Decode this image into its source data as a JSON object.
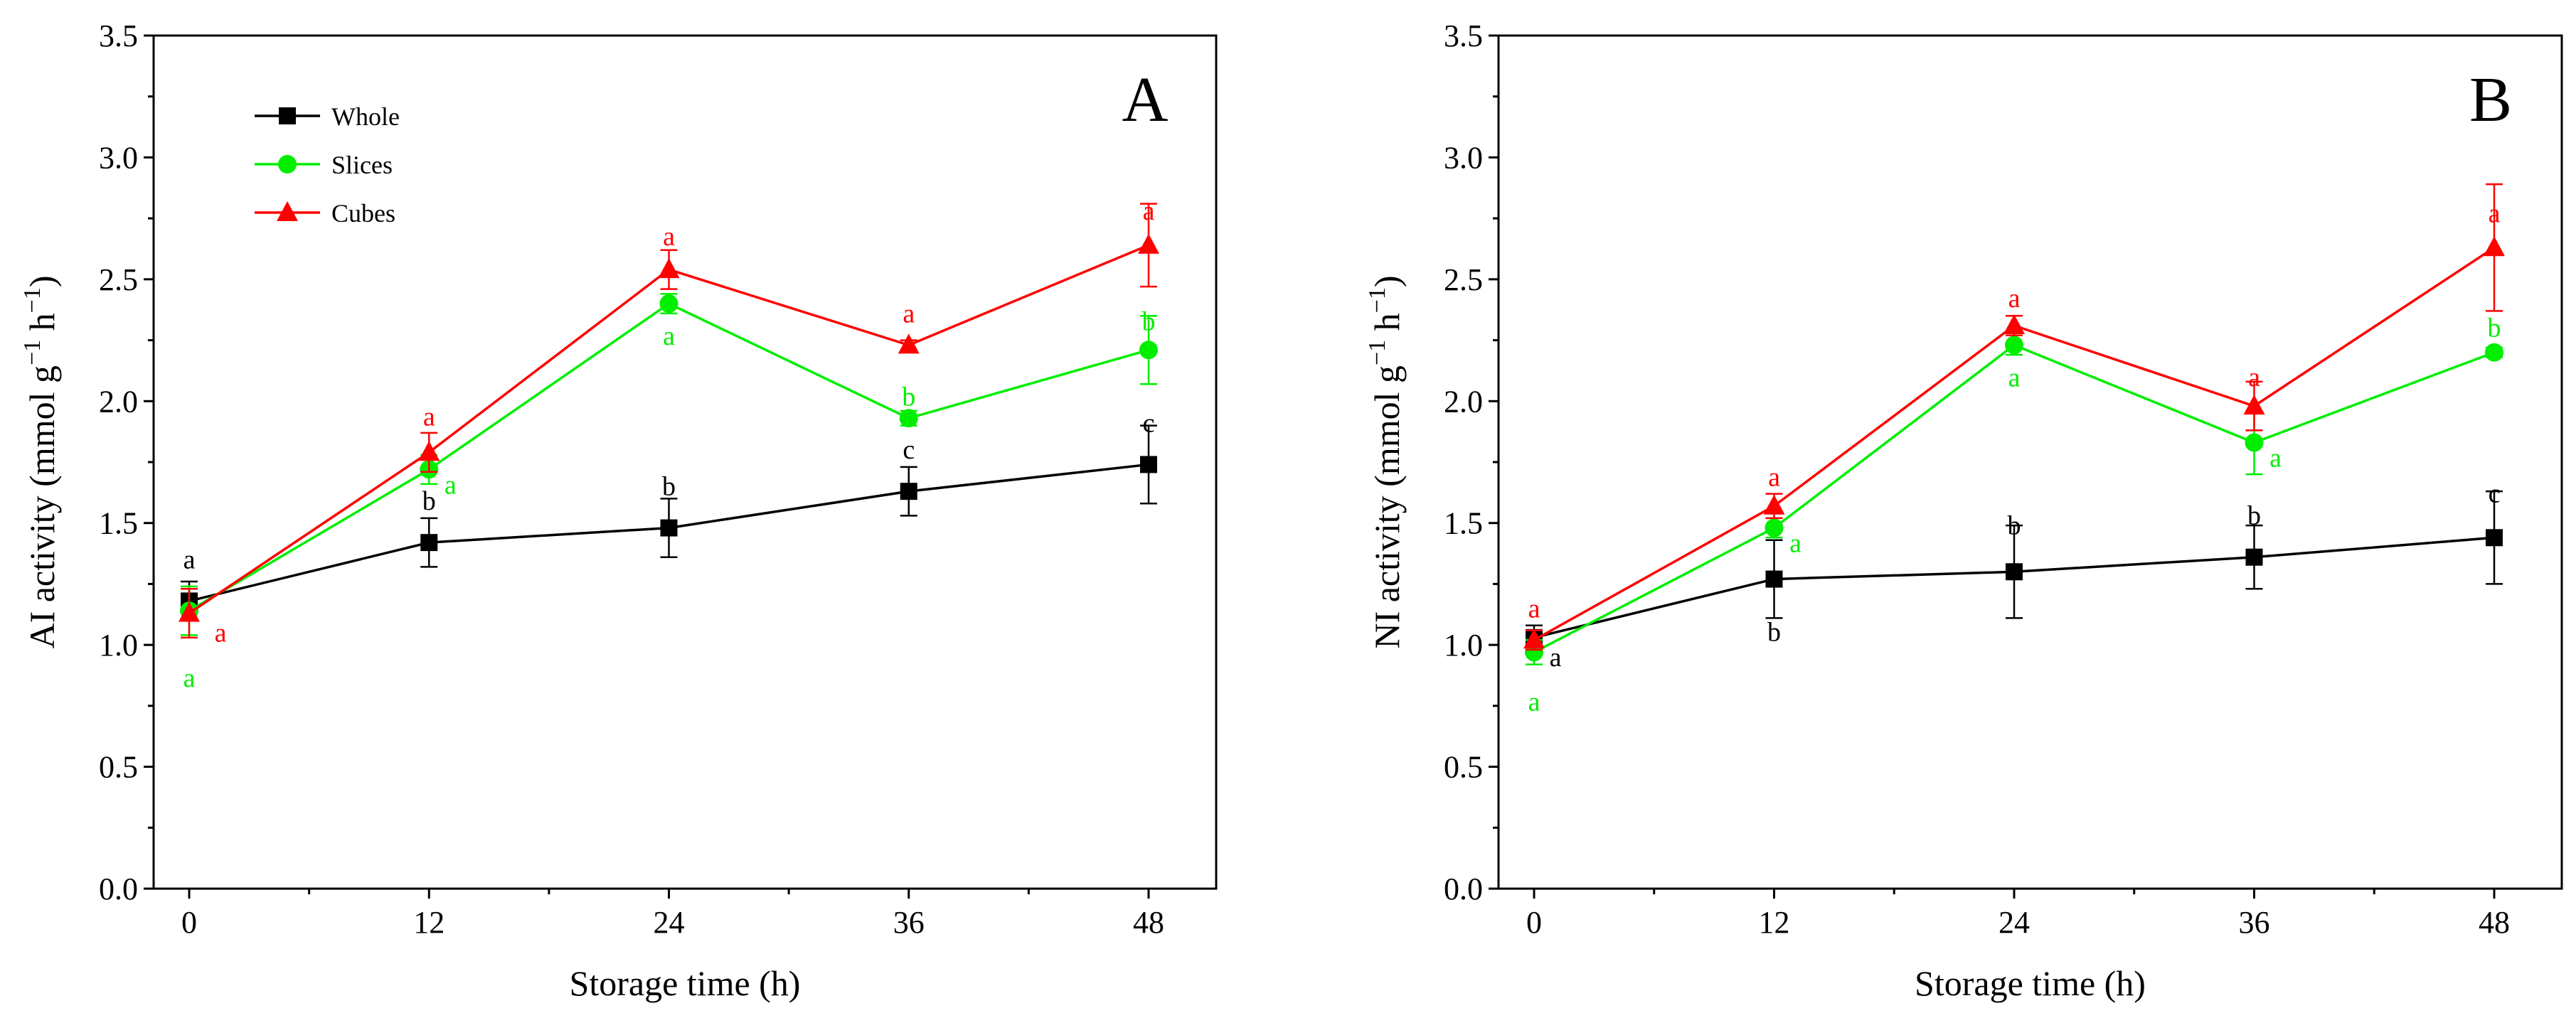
{
  "chart_data": [
    {
      "type": "line",
      "panel_label": "A",
      "xlabel": "Storage time (h)",
      "ylabel": "AI activity (mmol  g",
      "ylabel_unit_mid": " h",
      "ylabel_sup": "−1",
      "ylabel_close": ")",
      "x": [
        0,
        12,
        24,
        36,
        48
      ],
      "xticks": [
        "0",
        "12",
        "24",
        "36",
        "48"
      ],
      "ylim": [
        0,
        3.5
      ],
      "yticks": [
        "0.0",
        "0.5",
        "1.0",
        "1.5",
        "2.0",
        "2.5",
        "3.0",
        "3.5"
      ],
      "legend": {
        "placement": "top-left",
        "entries": [
          "Whole",
          "Slices",
          "Cubes"
        ]
      },
      "series": [
        {
          "name": "Whole",
          "color": "#000000",
          "marker": "square",
          "values": [
            1.18,
            1.42,
            1.48,
            1.63,
            1.74
          ],
          "errors": [
            0.08,
            0.1,
            0.12,
            0.1,
            0.16
          ],
          "letters": [
            "a",
            "b",
            "b",
            "c",
            "c"
          ]
        },
        {
          "name": "Slices",
          "color": "#00ee00",
          "marker": "circle",
          "values": [
            1.14,
            1.72,
            2.4,
            1.93,
            2.21
          ],
          "errors": [
            0.1,
            0.06,
            0.04,
            0.03,
            0.14
          ],
          "letters": [
            "a",
            "a",
            "a",
            "b",
            "b"
          ]
        },
        {
          "name": "Cubes",
          "color": "#ff0000",
          "marker": "triangle",
          "values": [
            1.13,
            1.79,
            2.54,
            2.23,
            2.64
          ],
          "errors": [
            0.1,
            0.08,
            0.08,
            0.02,
            0.17
          ],
          "letters": [
            "a",
            "a",
            "a",
            "a",
            "a"
          ]
        }
      ]
    },
    {
      "type": "line",
      "panel_label": "B",
      "xlabel": "Storage time (h)",
      "ylabel": "NI activity (mmol  g",
      "ylabel_unit_mid": " h",
      "ylabel_sup": "−1",
      "ylabel_close": ")",
      "x": [
        0,
        12,
        24,
        36,
        48
      ],
      "xticks": [
        "0",
        "12",
        "24",
        "36",
        "48"
      ],
      "ylim": [
        0,
        3.5
      ],
      "yticks": [
        "0.0",
        "0.5",
        "1.0",
        "1.5",
        "2.0",
        "2.5",
        "3.0",
        "3.5"
      ],
      "series": [
        {
          "name": "Whole",
          "color": "#000000",
          "marker": "square",
          "values": [
            1.03,
            1.27,
            1.3,
            1.36,
            1.44
          ],
          "errors": [
            0.05,
            0.16,
            0.19,
            0.13,
            0.19
          ],
          "letters": [
            "a",
            "b",
            "b",
            "b",
            "c"
          ]
        },
        {
          "name": "Slices",
          "color": "#00ee00",
          "marker": "circle",
          "values": [
            0.97,
            1.48,
            2.23,
            1.83,
            2.2
          ],
          "errors": [
            0.05,
            0.04,
            0.04,
            0.13,
            0.02
          ],
          "letters": [
            "a",
            "a",
            "a",
            "a",
            "b"
          ]
        },
        {
          "name": "Cubes",
          "color": "#ff0000",
          "marker": "triangle",
          "values": [
            1.02,
            1.57,
            2.31,
            1.98,
            2.63
          ],
          "errors": [
            0.04,
            0.05,
            0.04,
            0.1,
            0.26
          ],
          "letters": [
            "a",
            "a",
            "a",
            "a",
            "a"
          ]
        }
      ]
    }
  ]
}
